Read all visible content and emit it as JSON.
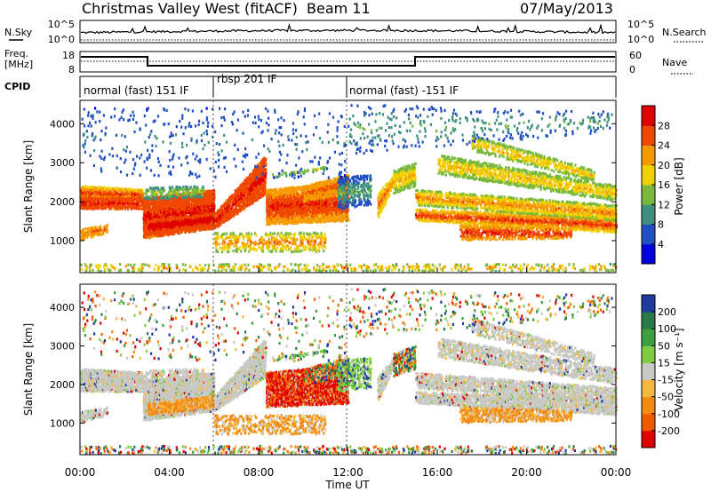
{
  "header": {
    "title": "Christmas Valley West (fitACF)",
    "beam": "Beam 11",
    "date": "07/May/2013"
  },
  "top_panels": {
    "nsky_label": "N.Sky",
    "nsearch_label": "N.Search",
    "nsky_ticks_left": [
      "10^5",
      "10^0"
    ],
    "nsky_ticks_right": [
      "10^5",
      "10^0"
    ],
    "freq_label_line1": "Freq.",
    "freq_label_line2": "[MHz]",
    "freq_ticks": [
      "18",
      "8"
    ],
    "nave_label": "Nave",
    "nave_ticks": [
      "60",
      "0"
    ],
    "cpid_label": "CPID",
    "cpid_segments": [
      {
        "label": "normal (fast) 151 IF",
        "start_hour": 0
      },
      {
        "label": "rbsp 201 IF",
        "start_hour": 6
      },
      {
        "label": "normal (fast) -151 IF",
        "start_hour": 12
      }
    ]
  },
  "chart_data": [
    {
      "type": "heatmap",
      "name": "power",
      "ylabel": "Slant Range [km]",
      "ylim": [
        180,
        4600
      ],
      "yticks": [
        1000,
        2000,
        3000,
        4000
      ],
      "xlim": [
        0,
        24
      ],
      "colorbar_label": "Power [dB]",
      "colorbar_ticks": [
        "4",
        "8",
        "12",
        "16",
        "20",
        "24",
        "28"
      ],
      "colorbar_colors": [
        "#0000e0",
        "#1f4fc0",
        "#3f8f80",
        "#78b83c",
        "#f0d000",
        "#f59a00",
        "#f04800",
        "#e00000"
      ]
    },
    {
      "type": "heatmap",
      "name": "velocity",
      "ylabel": "Slant Range [km]",
      "ylim": [
        180,
        4600
      ],
      "yticks": [
        1000,
        2000,
        3000,
        4000
      ],
      "xlim": [
        0,
        24
      ],
      "xlabel": "Time UT",
      "xticks": [
        "00:00",
        "04:00",
        "08:00",
        "12:00",
        "16:00",
        "20:00",
        "00:00"
      ],
      "colorbar_label": "Velocity [m s⁻¹]",
      "colorbar_ticks": [
        "200",
        "100",
        "50",
        "15",
        "-15",
        "-50",
        "-100",
        "-200"
      ],
      "colorbar_colors": [
        "#1e3ca0",
        "#2a7a4a",
        "#3aa040",
        "#80cc40",
        "#c8c8c4",
        "#f7b840",
        "#f48a10",
        "#f25a00",
        "#e00000"
      ]
    }
  ]
}
